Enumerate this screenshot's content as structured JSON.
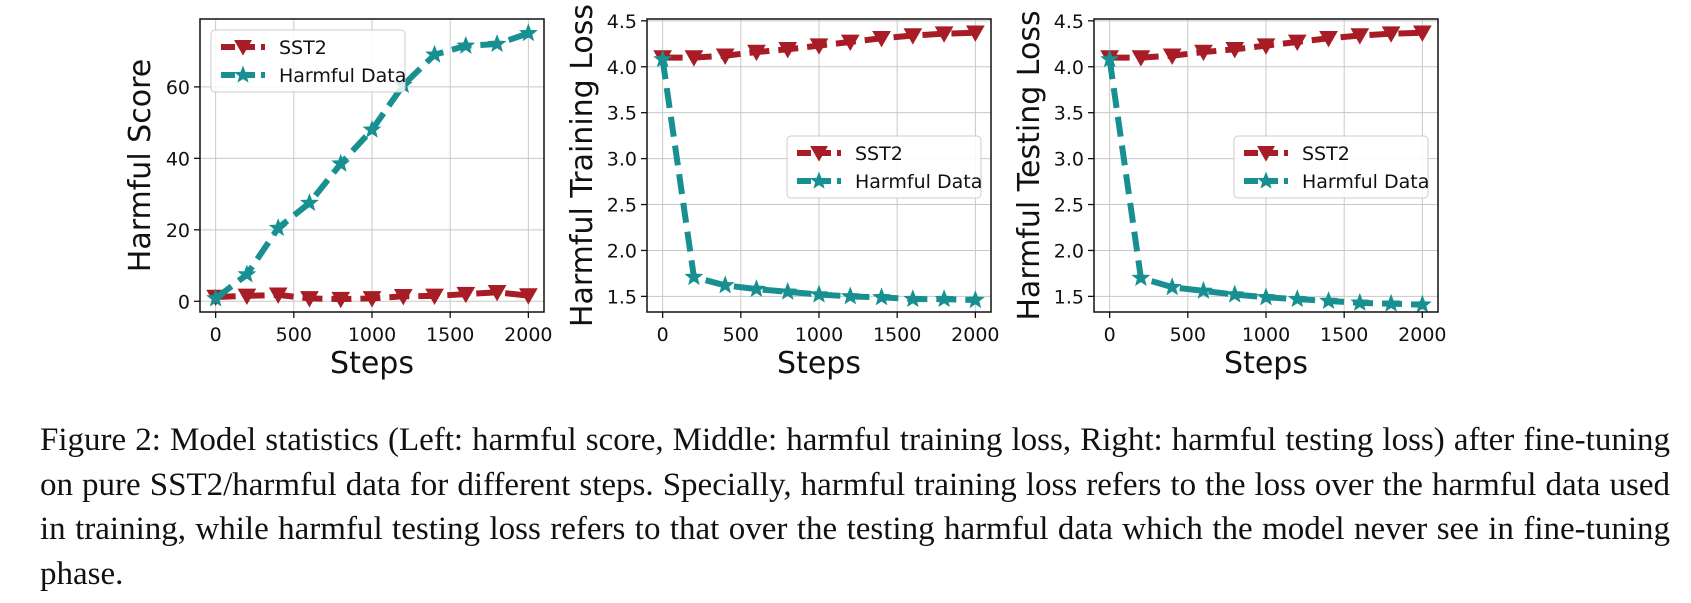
{
  "colors": {
    "sst2": "#a81c25",
    "harmful": "#188f91",
    "grid": "#c8c8c8"
  },
  "chart_data": [
    {
      "type": "line",
      "xlabel": "Steps",
      "ylabel": "Harmful Score",
      "xlim": [
        -100,
        2100
      ],
      "ylim": [
        -3,
        79
      ],
      "xticks": [
        0,
        500,
        1000,
        1500,
        2000
      ],
      "yticks": [
        0,
        20,
        40,
        60
      ],
      "ytick_labels": [
        "0",
        "20",
        "40",
        "60"
      ],
      "grid": true,
      "legend_position": "top-left",
      "x": [
        0,
        200,
        400,
        600,
        800,
        1000,
        1200,
        1400,
        1600,
        1800,
        2000
      ],
      "series": [
        {
          "name": "SST2",
          "marker": "triangle-down",
          "values": [
            1.2,
            1.5,
            1.8,
            0.8,
            0.6,
            0.8,
            1.4,
            1.5,
            2.0,
            2.5,
            1.6
          ]
        },
        {
          "name": "Harmful Data",
          "marker": "star",
          "values": [
            0.8,
            7.5,
            20.5,
            27.5,
            38.5,
            48,
            60.5,
            69,
            71.5,
            72,
            75
          ]
        }
      ]
    },
    {
      "type": "line",
      "xlabel": "Steps",
      "ylabel": "Harmful Training Loss",
      "xlim": [
        -100,
        2100
      ],
      "ylim": [
        1.33,
        4.52
      ],
      "xticks": [
        0,
        500,
        1000,
        1500,
        2000
      ],
      "yticks": [
        1.5,
        2.0,
        2.5,
        3.0,
        3.5,
        4.0,
        4.5
      ],
      "ytick_labels": [
        "1.5",
        "2.0",
        "2.5",
        "3.0",
        "3.5",
        "4.0",
        "4.5"
      ],
      "grid": true,
      "legend_position": "center-right",
      "x": [
        0,
        200,
        400,
        600,
        800,
        1000,
        1200,
        1400,
        1600,
        1800,
        2000
      ],
      "series": [
        {
          "name": "SST2",
          "marker": "triangle-down",
          "values": [
            4.1,
            4.1,
            4.12,
            4.16,
            4.19,
            4.23,
            4.27,
            4.31,
            4.34,
            4.36,
            4.37
          ]
        },
        {
          "name": "Harmful Data",
          "marker": "star",
          "values": [
            4.08,
            1.71,
            1.62,
            1.58,
            1.55,
            1.52,
            1.5,
            1.49,
            1.47,
            1.47,
            1.46
          ]
        }
      ]
    },
    {
      "type": "line",
      "xlabel": "Steps",
      "ylabel": "Harmful Testing Loss",
      "xlim": [
        -100,
        2100
      ],
      "ylim": [
        1.33,
        4.52
      ],
      "xticks": [
        0,
        500,
        1000,
        1500,
        2000
      ],
      "yticks": [
        1.5,
        2.0,
        2.5,
        3.0,
        3.5,
        4.0,
        4.5
      ],
      "ytick_labels": [
        "1.5",
        "2.0",
        "2.5",
        "3.0",
        "3.5",
        "4.0",
        "4.5"
      ],
      "grid": true,
      "legend_position": "center-right",
      "x": [
        0,
        200,
        400,
        600,
        800,
        1000,
        1200,
        1400,
        1600,
        1800,
        2000
      ],
      "series": [
        {
          "name": "SST2",
          "marker": "triangle-down",
          "values": [
            4.1,
            4.1,
            4.12,
            4.16,
            4.19,
            4.23,
            4.27,
            4.31,
            4.34,
            4.36,
            4.37
          ]
        },
        {
          "name": "Harmful Data",
          "marker": "star",
          "values": [
            4.08,
            1.7,
            1.6,
            1.56,
            1.52,
            1.49,
            1.47,
            1.45,
            1.43,
            1.42,
            1.41
          ]
        }
      ]
    }
  ],
  "caption": "Figure 2: Model statistics (Left: harmful score, Middle: harmful training loss, Right: harmful testing loss) after fine-tuning on pure SST2/harmful data for different steps. Specially, harmful training loss refers to the loss over the harmful data used in training, while harmful testing loss refers to that over the testing harmful data which the model never see in fine-tuning phase."
}
